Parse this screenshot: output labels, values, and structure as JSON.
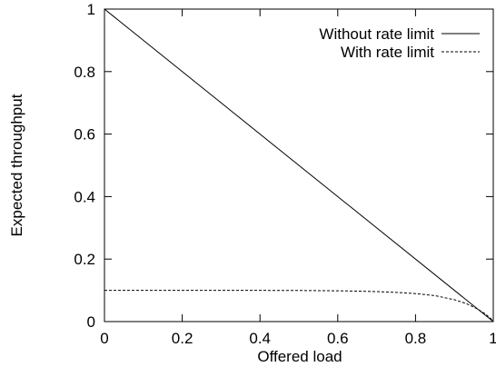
{
  "chart_data": {
    "type": "line",
    "title": "",
    "xlabel": "Offered load",
    "ylabel": "Expected throughput",
    "xlim": [
      0,
      1
    ],
    "ylim": [
      0,
      1
    ],
    "xticks": [
      "0",
      "0.2",
      "0.4",
      "0.6",
      "0.8",
      "1"
    ],
    "yticks": [
      "0",
      "0.2",
      "0.4",
      "0.6",
      "0.8",
      "1"
    ],
    "grid": false,
    "legend_position": "top-right",
    "series": [
      {
        "name": "Without rate limit",
        "style": "solid",
        "color": "#000000",
        "x": [
          0,
          1
        ],
        "y": [
          1,
          0
        ]
      },
      {
        "name": "With rate limit",
        "style": "dashed",
        "color": "#000000",
        "x": [
          0,
          0.1,
          0.2,
          0.3,
          0.4,
          0.5,
          0.6,
          0.65,
          0.7,
          0.75,
          0.8,
          0.85,
          0.9,
          0.93,
          0.96,
          0.98,
          1.0
        ],
        "y": [
          0.1,
          0.1,
          0.1,
          0.1,
          0.0998,
          0.0995,
          0.0985,
          0.0975,
          0.096,
          0.0935,
          0.0895,
          0.083,
          0.07,
          0.058,
          0.04,
          0.024,
          0.003
        ]
      }
    ]
  }
}
